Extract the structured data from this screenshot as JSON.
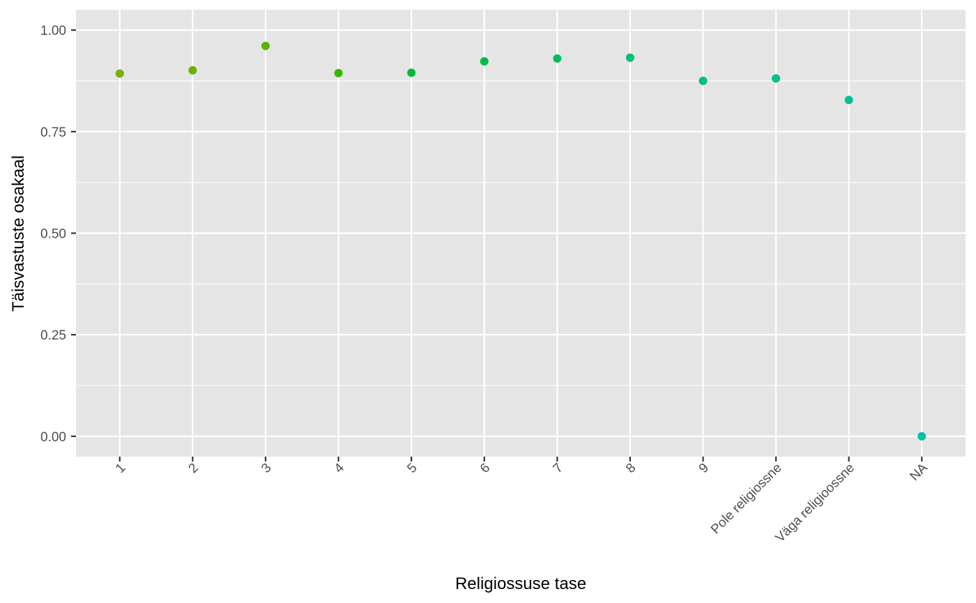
{
  "chart_data": {
    "type": "scatter",
    "xlabel": "Religiossuse tase",
    "ylabel": "Täisvastuste osakaal",
    "categories": [
      "1",
      "2",
      "3",
      "4",
      "5",
      "6",
      "7",
      "8",
      "9",
      "Pole religiossne",
      "Väga religioossne",
      "NA"
    ],
    "values": [
      0.893,
      0.901,
      0.961,
      0.894,
      0.895,
      0.923,
      0.93,
      0.932,
      0.875,
      0.881,
      0.828,
      0.0
    ],
    "colors": [
      "#7CAE00",
      "#6BB100",
      "#56B500",
      "#35B700",
      "#00BA38",
      "#00BC4B",
      "#00BE5D",
      "#00BF6E",
      "#00C07E",
      "#00C08C",
      "#00C09A",
      "#00BFA7"
    ],
    "ylim": [
      -0.05,
      1.05
    ],
    "yticks": [
      0.0,
      0.25,
      0.5,
      0.75,
      1.0
    ],
    "ytick_labels": [
      "0.00",
      "0.25",
      "0.50",
      "0.75",
      "1.00"
    ],
    "grid": true,
    "legend": "none",
    "panel_background": "#E5E5E5",
    "grid_color": "#FFFFFF"
  }
}
